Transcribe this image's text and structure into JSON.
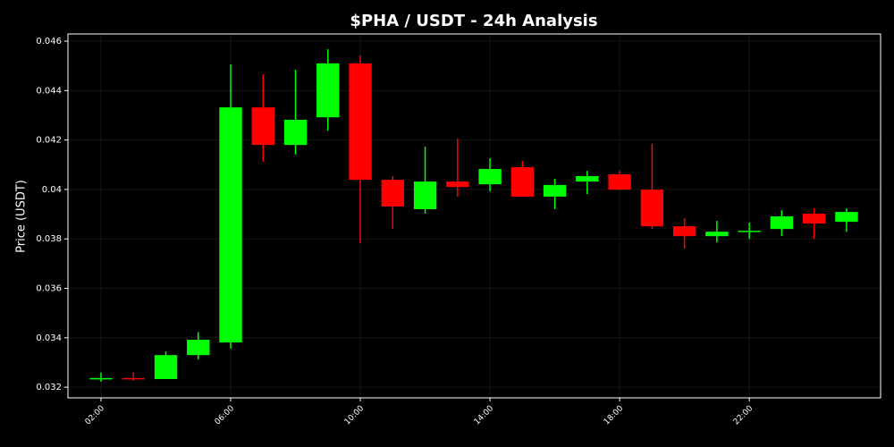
{
  "chart_data": {
    "type": "candlestick",
    "title": "$PHA / USDT - 24h Analysis",
    "ylabel": "Price (USDT)",
    "x": [
      2,
      3,
      4,
      5,
      6,
      7,
      8,
      9,
      10,
      11,
      12,
      13,
      14,
      15,
      16,
      17,
      18,
      19,
      20,
      21,
      22,
      23,
      24,
      25
    ],
    "open": [
      0.03233,
      0.03237,
      0.03233,
      0.0333,
      0.03381,
      0.04332,
      0.0418,
      0.04292,
      0.0451,
      0.04039,
      0.0392,
      0.04032,
      0.04021,
      0.0409,
      0.03971,
      0.04032,
      0.04061,
      0.03999,
      0.03851,
      0.03811,
      0.0383,
      0.0384,
      0.03902,
      0.03869
    ],
    "high": [
      0.0326,
      0.0326,
      0.03345,
      0.03423,
      0.04506,
      0.04466,
      0.04484,
      0.04567,
      0.04542,
      0.04054,
      0.04173,
      0.04206,
      0.04126,
      0.04115,
      0.04043,
      0.04075,
      0.04075,
      0.04184,
      0.03884,
      0.03873,
      0.03866,
      0.03916,
      0.03924,
      0.03924
    ],
    "low": [
      0.03222,
      0.03226,
      0.03233,
      0.03312,
      0.03356,
      0.04112,
      0.04141,
      0.04238,
      0.03782,
      0.0384,
      0.03902,
      0.03971,
      0.03992,
      0.03971,
      0.0392,
      0.03981,
      0.03999,
      0.0384,
      0.03761,
      0.03786,
      0.038,
      0.03811,
      0.038,
      0.03829
    ],
    "close": [
      0.03237,
      0.03233,
      0.0333,
      0.03392,
      0.04332,
      0.0418,
      0.04282,
      0.0451,
      0.04039,
      0.03931,
      0.04032,
      0.0401,
      0.04083,
      0.03971,
      0.04018,
      0.04054,
      0.03999,
      0.03851,
      0.03811,
      0.03829,
      0.03833,
      0.03891,
      0.03862,
      0.03909
    ],
    "up_color": "#00ff00",
    "down_color": "#ff0000",
    "xlim": [
      0.98,
      26.05
    ],
    "xticks": [
      {
        "value": 2,
        "label": "02:00"
      },
      {
        "value": 6,
        "label": "06:00"
      },
      {
        "value": 10,
        "label": "10:00"
      },
      {
        "value": 14,
        "label": "14:00"
      },
      {
        "value": 18,
        "label": "18:00"
      },
      {
        "value": 22,
        "label": "22:00"
      }
    ],
    "ylim": [
      0.03157,
      0.04629
    ],
    "yticks": [
      0.032,
      0.034,
      0.036,
      0.038,
      0.04,
      0.042,
      0.044,
      0.046
    ],
    "grid": true
  }
}
